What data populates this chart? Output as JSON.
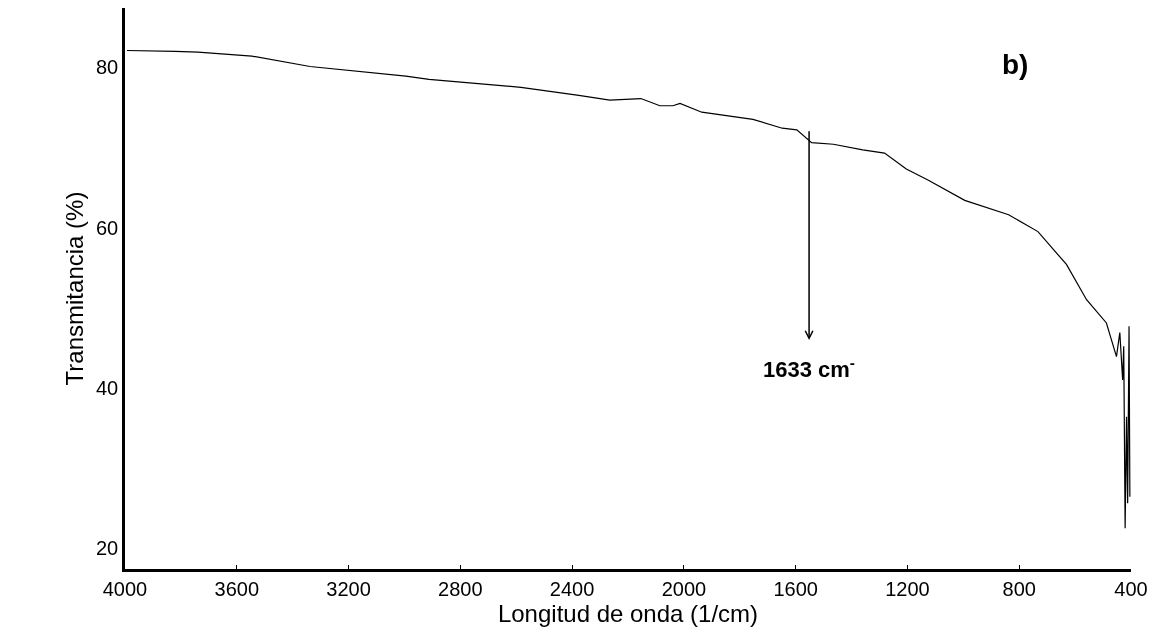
{
  "chart_data": {
    "type": "line",
    "xlabel": "Longitud de onda (1/cm)",
    "ylabel": "Transmitancia (%)",
    "x": [
      3993,
      3820,
      3739,
      3546,
      3338,
      2995,
      2912,
      2583,
      2376,
      2265,
      2154,
      2086,
      2039,
      2014,
      1936,
      1753,
      1648,
      1596,
      1543,
      1465,
      1360,
      1282,
      1204,
      1125,
      995,
      838,
      733,
      631,
      559,
      488,
      452,
      440,
      430,
      426,
      421,
      416,
      412,
      407,
      404
    ],
    "series": [
      {
        "color": "#000000",
        "values": [
          82.1,
          82.0,
          81.9,
          81.4,
          80.1,
          78.9,
          78.5,
          77.5,
          76.5,
          75.9,
          76.1,
          75.2,
          75.2,
          75.5,
          74.4,
          73.5,
          72.4,
          72.2,
          70.6,
          70.4,
          69.7,
          69.3,
          67.3,
          65.9,
          63.4,
          61.6,
          59.5,
          55.4,
          51.0,
          48.1,
          43.9,
          46.9,
          41.0,
          45.2,
          22.5,
          36.4,
          25.6,
          47.7,
          26.4
        ]
      }
    ],
    "xlim": [
      4000,
      400
    ],
    "xticks": [
      4000,
      3600,
      3200,
      2800,
      2400,
      2000,
      1600,
      1200,
      800,
      400
    ],
    "ylim": [
      17.4,
      87.4
    ],
    "yticks": [
      20,
      40,
      60,
      80
    ],
    "annotations": [
      "1633 cm$^{-}$",
      "b)"
    ],
    "marker": "none",
    "line_style": "solid"
  }
}
